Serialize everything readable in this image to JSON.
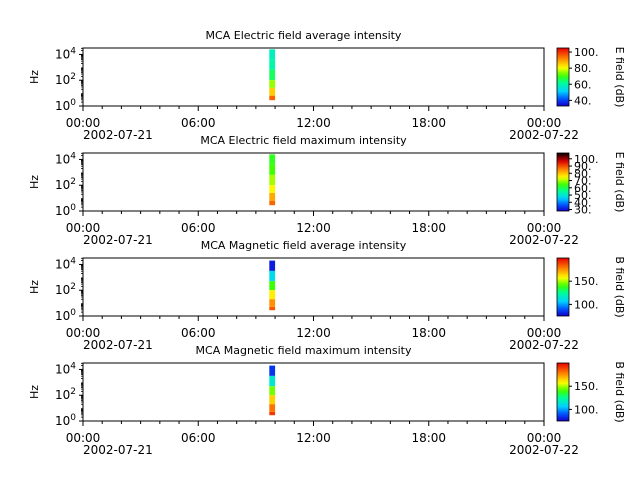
{
  "chart_data": [
    {
      "type": "heatmap",
      "title": "MCA  Electric field average intensity",
      "ylabel": "Hz",
      "colorbar_label": "E field (dB)",
      "colorbar_ticks": [
        "40.",
        "60.",
        "80.",
        "100."
      ],
      "colorbar_range": [
        33,
        105
      ],
      "colorbar_tick_values": [
        40,
        60,
        80,
        100
      ],
      "colorscale": "rainbow",
      "x_ticks": [
        "00:00",
        "06:00",
        "12:00",
        "18:00",
        "00:00"
      ],
      "x_start_date": "2002-07-21",
      "x_end_date": "2002-07-22",
      "xlim_hours": [
        0,
        24
      ],
      "y_log_ticks": [
        0,
        2,
        4
      ],
      "ylim_exponent": [
        0,
        4.5
      ],
      "data_span_hours": [
        9.7,
        10.0
      ],
      "spectrum": [
        {
          "exponent": 4.4,
          "value": 58
        },
        {
          "exponent": 3.6,
          "value": 60
        },
        {
          "exponent": 2.8,
          "value": 65
        },
        {
          "exponent": 2.0,
          "value": 75
        },
        {
          "exponent": 1.4,
          "value": 85
        },
        {
          "exponent": 0.8,
          "value": 95
        }
      ]
    },
    {
      "type": "heatmap",
      "title": "MCA  Electric field maximum intensity",
      "ylabel": "Hz",
      "colorbar_label": "E field (dB)",
      "colorbar_ticks": [
        "30.",
        "40.",
        "50.",
        "60.",
        "70.",
        "80.",
        "90.",
        "100."
      ],
      "colorbar_range": [
        28,
        108
      ],
      "colorbar_tick_values": [
        30,
        40,
        50,
        60,
        70,
        80,
        90,
        100
      ],
      "colorscale": "rainbow_black",
      "x_ticks": [
        "00:00",
        "06:00",
        "12:00",
        "18:00",
        "00:00"
      ],
      "x_start_date": "2002-07-21",
      "x_end_date": "2002-07-22",
      "xlim_hours": [
        0,
        24
      ],
      "y_log_ticks": [
        0,
        2,
        4
      ],
      "ylim_exponent": [
        0,
        4.5
      ],
      "data_span_hours": [
        9.7,
        10.0
      ],
      "spectrum": [
        {
          "exponent": 4.4,
          "value": 63
        },
        {
          "exponent": 3.6,
          "value": 65
        },
        {
          "exponent": 2.8,
          "value": 70
        },
        {
          "exponent": 2.0,
          "value": 75
        },
        {
          "exponent": 1.4,
          "value": 82
        },
        {
          "exponent": 0.8,
          "value": 88
        }
      ]
    },
    {
      "type": "heatmap",
      "title": "MCA  Magnetic field average intensity",
      "ylabel": "Hz",
      "colorbar_label": "B field (dB)",
      "colorbar_ticks": [
        "100.",
        "150."
      ],
      "colorbar_range": [
        75,
        200
      ],
      "colorbar_tick_values": [
        100,
        150
      ],
      "colorscale": "rainbow",
      "x_ticks": [
        "00:00",
        "06:00",
        "12:00",
        "18:00",
        "00:00"
      ],
      "x_start_date": "2002-07-21",
      "x_end_date": "2002-07-22",
      "xlim_hours": [
        0,
        24
      ],
      "y_log_ticks": [
        0,
        2,
        4
      ],
      "ylim_exponent": [
        0,
        4.5
      ],
      "data_span_hours": [
        9.7,
        10.0
      ],
      "spectrum": [
        {
          "exponent": 4.3,
          "value": 80
        },
        {
          "exponent": 3.5,
          "value": 110
        },
        {
          "exponent": 2.7,
          "value": 140
        },
        {
          "exponent": 2.0,
          "value": 160
        },
        {
          "exponent": 1.3,
          "value": 175
        },
        {
          "exponent": 0.7,
          "value": 185
        }
      ]
    },
    {
      "type": "heatmap",
      "title": "MCA  Magnetic field maximum intensity",
      "ylabel": "Hz",
      "colorbar_label": "B field (dB)",
      "colorbar_ticks": [
        "100.",
        "150."
      ],
      "colorbar_range": [
        75,
        200
      ],
      "colorbar_tick_values": [
        100,
        150
      ],
      "colorscale": "rainbow",
      "x_ticks": [
        "00:00",
        "06:00",
        "12:00",
        "18:00",
        "00:00"
      ],
      "x_start_date": "2002-07-21",
      "x_end_date": "2002-07-22",
      "xlim_hours": [
        0,
        24
      ],
      "y_log_ticks": [
        0,
        2,
        4
      ],
      "ylim_exponent": [
        0,
        4.5
      ],
      "data_span_hours": [
        9.7,
        10.0
      ],
      "spectrum": [
        {
          "exponent": 4.3,
          "value": 85
        },
        {
          "exponent": 3.5,
          "value": 115
        },
        {
          "exponent": 2.7,
          "value": 145
        },
        {
          "exponent": 2.0,
          "value": 165
        },
        {
          "exponent": 1.3,
          "value": 180
        },
        {
          "exponent": 0.7,
          "value": 190
        }
      ]
    }
  ]
}
